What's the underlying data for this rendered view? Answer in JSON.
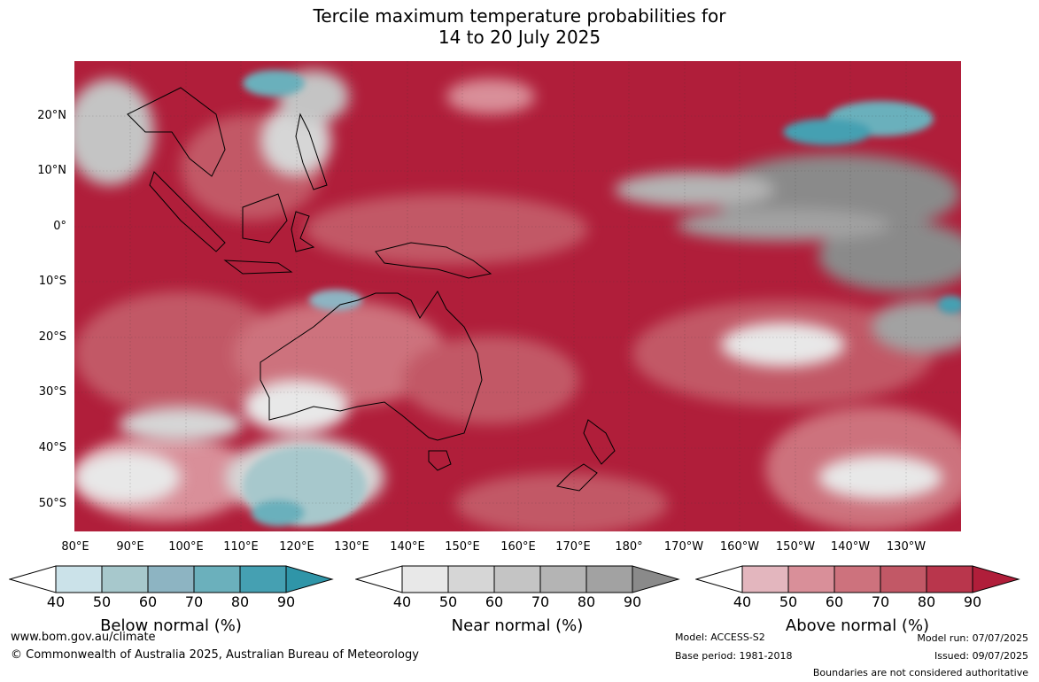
{
  "title": {
    "line1": "Tercile maximum temperature probabilities for",
    "line2": "14 to 20 July 2025"
  },
  "lat_labels": [
    "20°N",
    "10°N",
    "0°",
    "10°S",
    "20°S",
    "30°S",
    "40°S",
    "50°S"
  ],
  "lon_labels": [
    "80°E",
    "90°E",
    "100°E",
    "110°E",
    "120°E",
    "130°E",
    "140°E",
    "150°E",
    "160°E",
    "170°E",
    "180°",
    "170°W",
    "160°W",
    "150°W",
    "140°W",
    "130°W"
  ],
  "colorbars": [
    {
      "name": "below",
      "title": "Below normal (%)",
      "ticks": [
        "40",
        "50",
        "60",
        "70",
        "80",
        "90"
      ],
      "colors": [
        "#cbe2e9",
        "#a7c8cc",
        "#8db4c2",
        "#6bb0bc",
        "#45a0b2",
        "#2f95a8"
      ]
    },
    {
      "name": "near",
      "title": "Near normal (%)",
      "ticks": [
        "40",
        "50",
        "60",
        "70",
        "80",
        "90"
      ],
      "colors": [
        "#e8e8e8",
        "#d6d6d6",
        "#c4c4c4",
        "#b4b4b4",
        "#a2a2a2",
        "#8a8a8a"
      ]
    },
    {
      "name": "above",
      "title": "Above normal (%)",
      "ticks": [
        "40",
        "50",
        "60",
        "70",
        "80",
        "90"
      ],
      "colors": [
        "#e3b6be",
        "#d98f99",
        "#cd727d",
        "#c25866",
        "#b9364c",
        "#b01e3a"
      ]
    }
  ],
  "footer": {
    "website": "www.bom.gov.au/climate",
    "copyright": "© Commonwealth of Australia 2025, Australian Bureau of Meteorology",
    "model": "Model: ACCESS-S2",
    "base_period": "Base period: 1981-2018",
    "model_run": "Model run: 07/07/2025",
    "issued": "Issued: 09/07/2025",
    "disclaimer": "Boundaries are not considered authoritative"
  }
}
